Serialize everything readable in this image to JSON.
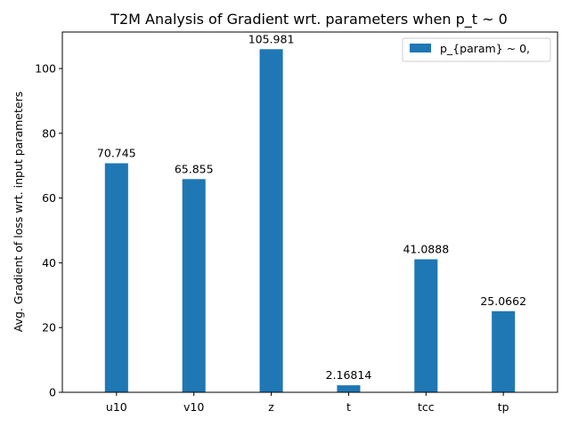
{
  "chart_data": {
    "type": "bar",
    "title": "T2M Analysis of Gradient wrt. parameters when p_t ~ 0",
    "xlabel": "",
    "ylabel": "Avg. Gradient of loss wrt. input parameters",
    "categories": [
      "u10",
      "v10",
      "z",
      "t",
      "tcc",
      "tp"
    ],
    "series": [
      {
        "name": "p_{param} ~ 0,",
        "values": [
          70.745,
          65.855,
          105.981,
          2.16814,
          41.0888,
          25.0662
        ],
        "labels": [
          "70.745",
          "65.855",
          "105.981",
          "2.16814",
          "41.0888",
          "25.0662"
        ],
        "color": "#1f77b4"
      }
    ],
    "ylim": [
      0,
      111.28
    ],
    "yticks": [
      0,
      20,
      40,
      60,
      80,
      100
    ],
    "grid": false,
    "legend_position": "top-right"
  }
}
